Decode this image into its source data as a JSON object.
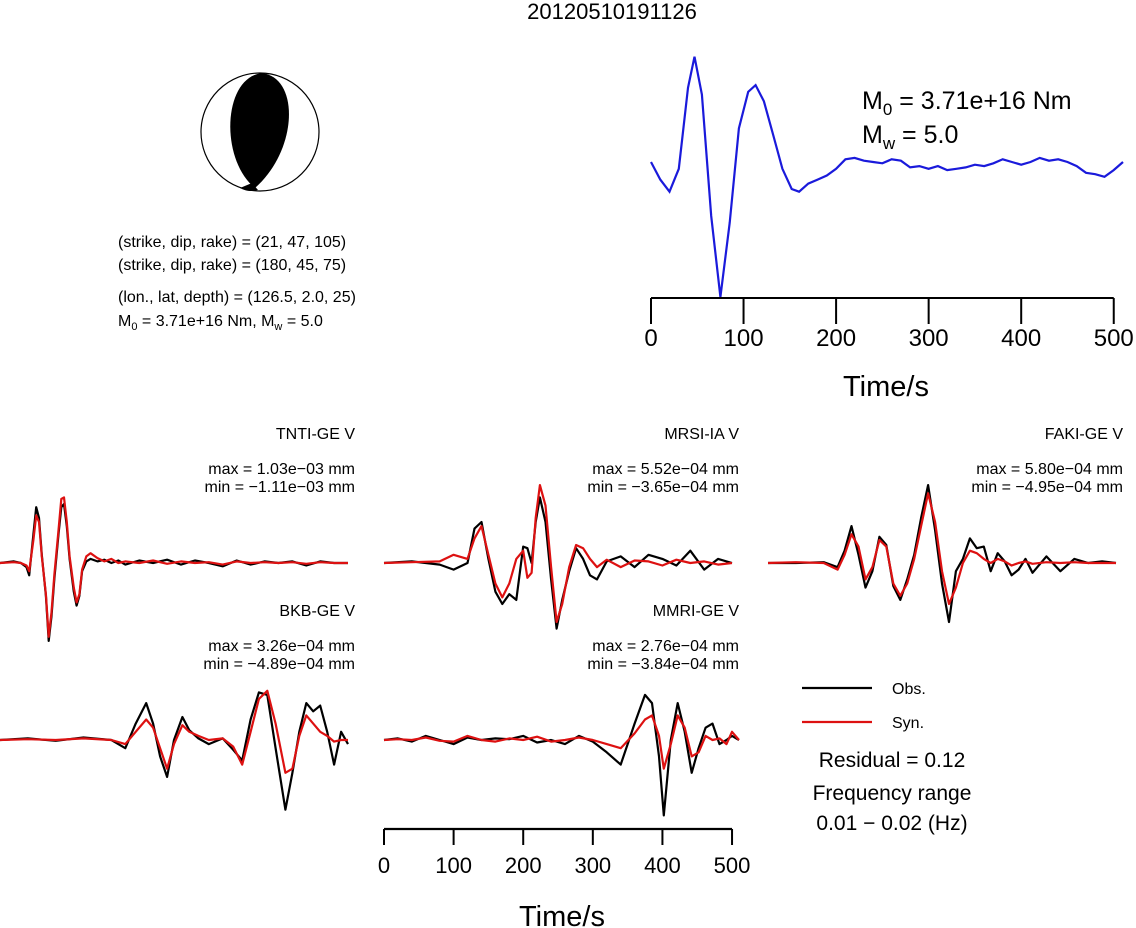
{
  "title": "20120510191126",
  "mechanism": {
    "line1": "(strike, dip, rake) = (21, 47, 105)",
    "line2": "(strike, dip, rake) = (180, 45, 75)",
    "location": "(lon., lat, depth) = (126.5, 2.0, 25)",
    "moment_prefix": "M",
    "moment_sub": "0",
    "moment_mid": " = 3.71e+16 Nm, M",
    "mw_sub": "w",
    "mw_value": " = 5.0"
  },
  "stf": {
    "m0_prefix": "M",
    "m0_sub": "0",
    "m0_value": " = 3.71e+16 Nm",
    "mw_prefix": "M",
    "mw_sub": "w",
    "mw_value": " = 5.0",
    "color": "#1a1adb",
    "xlabel": "Time/s"
  },
  "legend": {
    "obs_label": "Obs.",
    "syn_label": "Syn.",
    "residual": "Residual = 0.12",
    "freq_label": "Frequency range",
    "freq_value": "0.01 − 0.02 (Hz)",
    "obs_color": "#000000",
    "syn_color": "#dd1111"
  },
  "chart_data": [
    {
      "type": "line",
      "name": "source-time-function",
      "xlabel": "Time/s",
      "xlim": [
        0,
        510
      ],
      "xticks": [
        0,
        100,
        200,
        300,
        400,
        500
      ],
      "x": [
        0,
        10,
        20,
        30,
        40,
        47,
        55,
        65,
        75,
        85,
        95,
        105,
        113,
        122,
        132,
        142,
        152,
        160,
        170,
        180,
        190,
        200,
        210,
        220,
        230,
        240,
        250,
        260,
        270,
        280,
        290,
        300,
        310,
        320,
        330,
        340,
        350,
        360,
        370,
        380,
        390,
        400,
        410,
        420,
        430,
        440,
        450,
        460,
        470,
        480,
        490,
        500,
        510
      ],
      "y": [
        0.0,
        -0.13,
        -0.22,
        -0.05,
        0.55,
        0.78,
        0.5,
        -0.4,
        -1.0,
        -0.45,
        0.25,
        0.52,
        0.57,
        0.45,
        0.2,
        -0.05,
        -0.2,
        -0.22,
        -0.16,
        -0.13,
        -0.1,
        -0.05,
        0.02,
        0.03,
        0.01,
        0.0,
        -0.01,
        0.02,
        0.01,
        -0.04,
        -0.03,
        -0.05,
        -0.03,
        -0.06,
        -0.05,
        -0.04,
        -0.02,
        -0.03,
        -0.01,
        0.02,
        0.0,
        -0.02,
        0.0,
        0.03,
        0.01,
        0.02,
        0.0,
        -0.03,
        -0.08,
        -0.09,
        -0.11,
        -0.06,
        0.0
      ]
    },
    {
      "type": "line",
      "station": "TNTI-GE V",
      "max_label": "max = 1.03e−03 mm",
      "min_label": "min = −1.11e−03 mm",
      "x": [
        0,
        20,
        30,
        38,
        42,
        48,
        52,
        56,
        60,
        66,
        70,
        74,
        78,
        84,
        88,
        92,
        96,
        100,
        106,
        110,
        114,
        118,
        124,
        130,
        140,
        150,
        160,
        170,
        180,
        200,
        220,
        240,
        260,
        280,
        300,
        320,
        340,
        360,
        380,
        400,
        420,
        440,
        460,
        480,
        500
      ],
      "series": [
        {
          "name": "Obs.",
          "values": [
            0,
            0.02,
            0.0,
            -0.05,
            -0.15,
            0.35,
            0.68,
            0.55,
            0.1,
            -0.4,
            -0.95,
            -0.65,
            -0.2,
            0.35,
            0.68,
            0.72,
            0.45,
            0.05,
            -0.35,
            -0.52,
            -0.4,
            -0.1,
            0.02,
            0.05,
            0.02,
            0.04,
            0.0,
            0.03,
            -0.02,
            0.03,
            0.0,
            0.04,
            -0.02,
            0.03,
            0.0,
            -0.04,
            0.03,
            -0.02,
            0.02,
            0.0,
            0.02,
            -0.03,
            0.02,
            0.0,
            0.0
          ]
        },
        {
          "name": "Syn.",
          "values": [
            0,
            0.01,
            0.0,
            -0.03,
            -0.1,
            0.28,
            0.58,
            0.5,
            0.08,
            -0.38,
            -0.9,
            -0.6,
            -0.15,
            0.4,
            0.78,
            0.8,
            0.5,
            0.08,
            -0.3,
            -0.48,
            -0.38,
            -0.08,
            0.08,
            0.12,
            0.06,
            0.02,
            0.05,
            0.0,
            0.02,
            0.0,
            0.03,
            -0.01,
            0.02,
            0.0,
            0.01,
            -0.02,
            0.02,
            0.0,
            0.01,
            0.0,
            0.01,
            -0.01,
            0.01,
            0.0,
            0.0
          ]
        }
      ]
    },
    {
      "type": "line",
      "station": "MRSI-IA V",
      "max_label": "max = 5.52e−04 mm",
      "min_label": "min = −3.65e−04 mm",
      "x": [
        0,
        40,
        80,
        100,
        120,
        130,
        140,
        150,
        160,
        170,
        180,
        190,
        200,
        206,
        212,
        218,
        224,
        232,
        240,
        248,
        256,
        266,
        276,
        286,
        296,
        306,
        320,
        340,
        360,
        380,
        400,
        420,
        440,
        460,
        480,
        500
      ],
      "series": [
        {
          "name": "Obs.",
          "values": [
            0,
            0.02,
            -0.02,
            -0.08,
            0.0,
            0.42,
            0.5,
            0.05,
            -0.35,
            -0.5,
            -0.38,
            -0.45,
            0.2,
            0.18,
            0.0,
            0.5,
            0.8,
            0.5,
            -0.2,
            -0.8,
            -0.45,
            -0.1,
            0.18,
            0.05,
            -0.15,
            -0.2,
            0.02,
            0.08,
            -0.05,
            0.1,
            0.05,
            -0.03,
            0.15,
            -0.08,
            0.05,
            0.0
          ]
        },
        {
          "name": "Syn.",
          "values": [
            0,
            0.01,
            0.02,
            0.1,
            0.05,
            0.3,
            0.45,
            0.1,
            -0.25,
            -0.42,
            -0.25,
            0.05,
            0.15,
            -0.18,
            -0.12,
            0.55,
            0.95,
            0.7,
            -0.05,
            -0.72,
            -0.5,
            -0.05,
            0.22,
            0.18,
            0.05,
            -0.05,
            0.04,
            -0.05,
            0.03,
            0.02,
            -0.03,
            0.04,
            0.0,
            0.02,
            -0.02,
            0.0
          ]
        }
      ]
    },
    {
      "type": "line",
      "station": "FAKI-GE V",
      "max_label": "max = 5.80e−04 mm",
      "min_label": "min = −4.95e−04 mm",
      "x": [
        0,
        40,
        80,
        100,
        110,
        120,
        130,
        140,
        150,
        160,
        170,
        180,
        190,
        200,
        210,
        220,
        230,
        240,
        250,
        260,
        270,
        280,
        290,
        300,
        310,
        320,
        330,
        340,
        350,
        360,
        370,
        380,
        400,
        420,
        440,
        460,
        480,
        500
      ],
      "series": [
        {
          "name": "Obs.",
          "values": [
            0,
            0.0,
            0.01,
            -0.05,
            0.15,
            0.45,
            0.1,
            -0.3,
            -0.1,
            0.32,
            0.22,
            -0.28,
            -0.45,
            -0.2,
            0.1,
            0.55,
            0.95,
            0.4,
            -0.25,
            -0.72,
            -0.1,
            0.05,
            0.3,
            0.18,
            0.2,
            -0.1,
            0.12,
            0.02,
            -0.15,
            -0.08,
            0.05,
            -0.12,
            0.08,
            -0.1,
            0.05,
            0.0,
            0.02,
            0.0
          ]
        },
        {
          "name": "Syn.",
          "values": [
            0,
            0.01,
            0.0,
            -0.08,
            0.1,
            0.35,
            0.2,
            -0.2,
            -0.05,
            0.28,
            0.2,
            -0.25,
            -0.4,
            -0.25,
            0.05,
            0.45,
            0.85,
            0.5,
            -0.1,
            -0.5,
            -0.3,
            0.0,
            0.15,
            0.12,
            0.05,
            0.0,
            0.05,
            0.02,
            -0.03,
            0.0,
            0.02,
            -0.01,
            0.01,
            0.0,
            0.01,
            0.0,
            0.0,
            0.0
          ]
        }
      ]
    },
    {
      "type": "line",
      "station": "BKB-GE V",
      "max_label": "max = 3.26e−04 mm",
      "min_label": "min = −4.89e−04 mm",
      "x": [
        0,
        40,
        80,
        120,
        160,
        180,
        195,
        210,
        220,
        230,
        240,
        250,
        262,
        272,
        285,
        300,
        320,
        335,
        348,
        360,
        372,
        384,
        396,
        410,
        420,
        430,
        440,
        450,
        460,
        470,
        480,
        490,
        500
      ],
      "series": [
        {
          "name": "Obs.",
          "values": [
            0,
            0.02,
            -0.01,
            0.03,
            0.0,
            -0.1,
            0.2,
            0.45,
            0.2,
            -0.2,
            -0.45,
            0.0,
            0.28,
            0.12,
            0.02,
            -0.05,
            0.02,
            -0.12,
            -0.25,
            0.25,
            0.58,
            0.55,
            -0.1,
            -0.85,
            -0.4,
            0.1,
            0.45,
            0.35,
            0.42,
            0.1,
            -0.3,
            0.1,
            -0.05
          ]
        },
        {
          "name": "Syn.",
          "values": [
            0,
            0.01,
            0.0,
            0.02,
            0.0,
            -0.05,
            0.1,
            0.25,
            0.15,
            -0.1,
            -0.35,
            -0.05,
            0.18,
            0.1,
            0.05,
            0.0,
            0.02,
            -0.08,
            -0.3,
            0.1,
            0.5,
            0.6,
            0.2,
            -0.4,
            -0.35,
            0.05,
            0.3,
            0.2,
            0.1,
            0.05,
            -0.02,
            0.0,
            0.0
          ]
        }
      ]
    },
    {
      "type": "line",
      "station": "MMRI-GE V",
      "max_label": "max = 2.76e−04 mm",
      "min_label": "min = −3.84e−04 mm",
      "xlabel": "Time/s",
      "xlim": [
        0,
        510
      ],
      "xticks": [
        0,
        100,
        200,
        300,
        400,
        500
      ],
      "x": [
        0,
        20,
        40,
        60,
        80,
        100,
        120,
        140,
        160,
        180,
        200,
        220,
        240,
        260,
        280,
        300,
        320,
        340,
        360,
        375,
        385,
        395,
        402,
        412,
        422,
        432,
        442,
        452,
        462,
        472,
        482,
        492,
        500,
        510
      ],
      "series": [
        {
          "name": "Obs.",
          "values": [
            0,
            0.02,
            -0.02,
            0.05,
            0.0,
            -0.05,
            0.03,
            0.0,
            0.02,
            0.01,
            0.05,
            -0.03,
            0.0,
            -0.05,
            0.05,
            -0.02,
            -0.15,
            -0.3,
            0.2,
            0.55,
            0.45,
            -0.2,
            -0.92,
            0.0,
            0.45,
            0.1,
            -0.4,
            -0.1,
            0.15,
            0.2,
            -0.05,
            0.0,
            0.05,
            0.0
          ]
        },
        {
          "name": "Syn.",
          "values": [
            0,
            0.01,
            0.0,
            0.03,
            -0.01,
            -0.02,
            0.05,
            0.0,
            -0.02,
            0.02,
            0.0,
            0.04,
            -0.02,
            0.0,
            0.03,
            0.0,
            -0.05,
            -0.1,
            0.08,
            0.25,
            0.3,
            0.05,
            -0.35,
            -0.05,
            0.3,
            0.15,
            -0.2,
            -0.15,
            0.05,
            0.0,
            0.02,
            -0.05,
            0.1,
            0.0
          ]
        }
      ]
    }
  ]
}
